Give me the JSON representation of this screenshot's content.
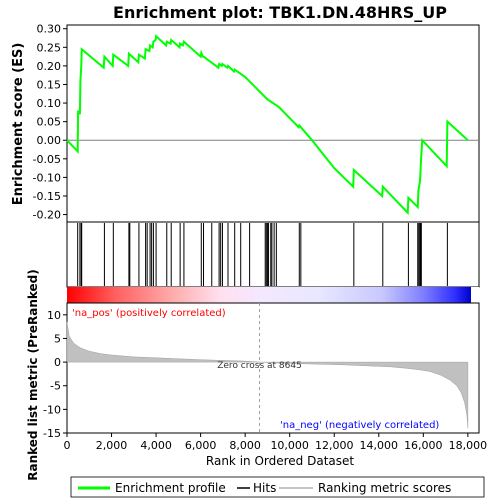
{
  "chart_data": {
    "type": "line",
    "title": "Enrichment plot: TBK1.DN.48HRS_UP",
    "es_panel": {
      "ylabel": "Enrichment score (ES)",
      "ylim": [
        -0.22,
        0.31
      ],
      "yticks": [
        "0.30",
        "0.25",
        "0.20",
        "0.15",
        "0.10",
        "0.05",
        "0.00",
        "-0.05",
        "-0.10",
        "-0.15",
        "-0.20"
      ],
      "ytick_values": [
        0.3,
        0.25,
        0.2,
        0.15,
        0.1,
        0.05,
        0.0,
        -0.05,
        -0.1,
        -0.15,
        -0.2
      ],
      "series": [
        {
          "name": "Enrichment profile",
          "color": "#00ff00",
          "x": [
            0,
            480,
            500,
            580,
            600,
            640,
            660,
            1650,
            1680,
            2050,
            2080,
            2750,
            2780,
            3200,
            3230,
            3500,
            3530,
            3700,
            3730,
            3850,
            3880,
            3980,
            4000,
            4450,
            4480,
            4650,
            4680,
            5050,
            5080,
            5200,
            5250,
            6000,
            6030,
            6100,
            6130,
            6800,
            6830,
            6950,
            6980,
            7200,
            7230,
            7500,
            7530,
            8000,
            8500,
            9000,
            9500,
            10400,
            10430,
            10500,
            11000,
            12000,
            12850,
            12880,
            14150,
            14180,
            15300,
            15330,
            15750,
            15780,
            15850,
            15870,
            15890,
            15910,
            15930,
            15950,
            17050,
            17080,
            18000
          ],
          "y": [
            0.0,
            -0.03,
            0.08,
            0.07,
            0.16,
            0.2,
            0.245,
            0.195,
            0.225,
            0.2,
            0.23,
            0.2,
            0.233,
            0.21,
            0.23,
            0.22,
            0.245,
            0.24,
            0.255,
            0.25,
            0.265,
            0.27,
            0.28,
            0.255,
            0.265,
            0.26,
            0.27,
            0.25,
            0.26,
            0.255,
            0.265,
            0.225,
            0.235,
            0.225,
            0.225,
            0.195,
            0.205,
            0.2,
            0.205,
            0.195,
            0.2,
            0.185,
            0.19,
            0.17,
            0.14,
            0.11,
            0.09,
            0.035,
            0.04,
            0.035,
            0.0,
            -0.075,
            -0.125,
            -0.08,
            -0.15,
            -0.125,
            -0.195,
            -0.155,
            -0.18,
            -0.135,
            -0.11,
            -0.09,
            -0.06,
            -0.04,
            -0.02,
            0.0,
            -0.07,
            0.05,
            0.0
          ]
        }
      ]
    },
    "hits": {
      "name": "Hits",
      "positions": [
        480,
        580,
        640,
        660,
        1680,
        2080,
        2780,
        2820,
        3230,
        3530,
        3600,
        3730,
        3800,
        3880,
        4000,
        4480,
        4680,
        5080,
        5250,
        6030,
        6130,
        6500,
        6830,
        6900,
        6980,
        7230,
        7530,
        7800,
        8200,
        8900,
        8950,
        9000,
        9050,
        9150,
        9200,
        9300,
        9400,
        10430,
        10500,
        12880,
        14180,
        15330,
        15750,
        15800,
        15850,
        15870,
        15890,
        15910,
        17080
      ]
    },
    "ranked_metric": {
      "name": "Ranking metric scores",
      "ylabel": "Ranked list metric (PreRanked)",
      "xlabel": "Rank in Ordered Dataset",
      "ylim": [
        -15,
        12.5
      ],
      "yticks": [
        "10",
        "5",
        "0",
        "-5",
        "-10",
        "-15"
      ],
      "ytick_values": [
        10,
        5,
        0,
        -5,
        -10,
        -15
      ],
      "xticks": [
        "0",
        "2,000",
        "4,000",
        "6,000",
        "8,000",
        "10,000",
        "12,000",
        "14,000",
        "16,000",
        "18,000"
      ],
      "xtick_values": [
        0,
        2000,
        4000,
        6000,
        8000,
        10000,
        12000,
        14000,
        16000,
        18000
      ],
      "xlim": [
        0,
        18500
      ],
      "zero_cross": 8645,
      "zero_cross_label": "Zero cross at 8645",
      "pos_label": "'na_pos' (positively correlated)",
      "neg_label": "'na_neg' (negatively correlated)",
      "profile_x": [
        0,
        100,
        300,
        600,
        1000,
        1500,
        2000,
        3000,
        4000,
        5000,
        6000,
        7000,
        8000,
        8645,
        9500,
        11000,
        12500,
        13500,
        14500,
        15200,
        15800,
        16300,
        16800,
        17200,
        17500,
        17700,
        17850,
        17950,
        18000
      ],
      "profile_y": [
        8.5,
        5.5,
        4.0,
        3.0,
        2.3,
        1.8,
        1.5,
        1.1,
        0.9,
        0.7,
        0.5,
        0.35,
        0.2,
        0.0,
        -0.2,
        -0.4,
        -0.6,
        -0.8,
        -1.0,
        -1.3,
        -1.6,
        -2.0,
        -2.8,
        -3.8,
        -5.0,
        -6.5,
        -8.5,
        -11.0,
        -14.0
      ]
    },
    "legend": {
      "entries": [
        "Enrichment profile",
        "Hits",
        "Ranking metric scores"
      ],
      "colors": [
        "#00ff00",
        "#000000",
        "#b0b0b0"
      ]
    },
    "colors": {
      "profile": "#00ff00",
      "pos": "#ff0000",
      "neg": "#0000ff",
      "metric_fill": "#c0c0c0"
    }
  }
}
